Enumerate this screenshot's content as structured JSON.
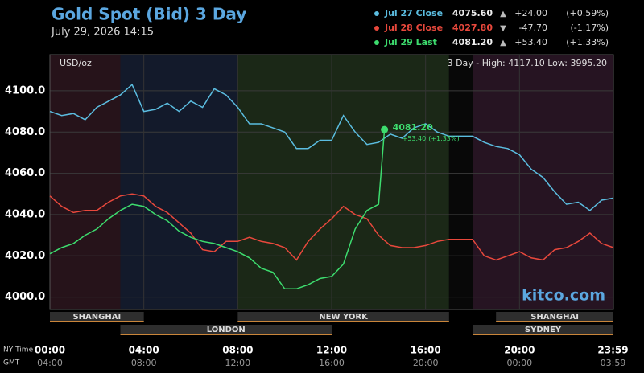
{
  "chart_data": {
    "type": "line",
    "title": "Gold Spot (Bid) 3 Day",
    "subtitle": "July 29, 2026 14:15",
    "unit_label": "USD/oz",
    "range_note": "3 Day - High: 4117.10  Low: 3995.20",
    "watermark": "kitco.com",
    "x_axis_labels": [
      "NY Time",
      "GMT"
    ],
    "xlim": [
      0,
      24
    ],
    "xticks": [
      {
        "value": 0,
        "label": "00:00"
      },
      {
        "value": 4,
        "label": "04:00"
      },
      {
        "value": 8,
        "label": "08:00"
      },
      {
        "value": 12,
        "label": "12:00"
      },
      {
        "value": 16,
        "label": "16:00"
      },
      {
        "value": 20,
        "label": "20:00"
      },
      {
        "value": 23.983,
        "label": "23:59"
      }
    ],
    "x2_tick_labels": [
      "04:00",
      "08:00",
      "12:00",
      "16:00",
      "20:00",
      "00:00",
      "03:59"
    ],
    "ylim": [
      3994,
      4117.5
    ],
    "yticks": [
      {
        "value": 4000,
        "label": "4000.0"
      },
      {
        "value": 4020,
        "label": "4020.0"
      },
      {
        "value": 4040,
        "label": "4040.0"
      },
      {
        "value": 4060,
        "label": "4060.0"
      },
      {
        "value": 4080,
        "label": "4080.0"
      },
      {
        "value": 4100,
        "label": "4100.0"
      }
    ],
    "grid": true,
    "legend": "top-right",
    "bands": [
      {
        "start": 0,
        "end": 3,
        "color": "#26131a"
      },
      {
        "start": 3,
        "end": 8,
        "color": "#131a2b"
      },
      {
        "start": 8,
        "end": 17,
        "color": "#1b2817"
      },
      {
        "start": 17,
        "end": 18,
        "color": "#080808"
      },
      {
        "start": 18,
        "end": 24,
        "color": "#261422"
      }
    ],
    "sessions": [
      {
        "name": "SHANGHAI",
        "start": 0,
        "end": 4
      },
      {
        "name": "LONDON",
        "start": 3,
        "end": 12
      },
      {
        "name": "NEW YORK",
        "start": 8,
        "end": 17
      },
      {
        "name": "SHANGHAI",
        "start": 19,
        "end": 24
      },
      {
        "name": "SYDNEY",
        "start": 18,
        "end": 24
      }
    ],
    "x": [
      0,
      0.5,
      1,
      1.5,
      2,
      2.5,
      3,
      3.5,
      4,
      4.5,
      5,
      5.5,
      6,
      6.5,
      7,
      7.5,
      8,
      8.5,
      9,
      9.5,
      10,
      10.5,
      11,
      11.5,
      12,
      12.5,
      13,
      13.5,
      14,
      14.5,
      15,
      15.5,
      16,
      16.5,
      17,
      17.5,
      18,
      18.5,
      19,
      19.5,
      20,
      20.5,
      21,
      21.5,
      22,
      22.5,
      23,
      23.5,
      24
    ],
    "series": [
      {
        "name": "Jul 27 Close",
        "color": "#5bbde0",
        "last": "4075.60",
        "arrow": "▲",
        "change": "+24.00",
        "change_pct": "(+0.59%)",
        "values": [
          4090,
          4088,
          4089,
          4086,
          4092,
          4095,
          4098,
          4103,
          4090,
          4091,
          4094,
          4090,
          4095,
          4092,
          4101,
          4098,
          4092,
          4084,
          4084,
          4082,
          4080,
          4072,
          4072,
          4076,
          4076,
          4088,
          4080,
          4074,
          4075,
          4079,
          4077,
          4082,
          4084,
          4080,
          4078,
          4078,
          4078,
          4075,
          4073,
          4072,
          4069,
          4062,
          4058,
          4051,
          4045,
          4046,
          4042,
          4047,
          4048
        ]
      },
      {
        "name": "Jul 28 Close",
        "color": "#e8483c",
        "last": "4027.80",
        "arrow": "▼",
        "change": "-47.70",
        "change_pct": "(-1.17%)",
        "values": [
          4049,
          4044,
          4041,
          4042,
          4042,
          4046,
          4049,
          4050,
          4049,
          4044,
          4041,
          4036,
          4031,
          4023,
          4022,
          4027,
          4027,
          4029,
          4027,
          4026,
          4024,
          4018,
          4027,
          4033,
          4038,
          4044,
          4040,
          4038,
          4030,
          4025,
          4024,
          4024,
          4025,
          4027,
          4028,
          4028,
          4028,
          4020,
          4018,
          4020,
          4022,
          4019,
          4018,
          4023,
          4024,
          4027,
          4031,
          4026,
          4024
        ]
      },
      {
        "name": "Jul 29 Last",
        "color": "#3ddc6e",
        "last": "4081.20",
        "arrow": "▲",
        "change": "+53.40",
        "change_pct": "(+1.33%)",
        "x": [
          0,
          0.5,
          1,
          1.5,
          2,
          2.5,
          3,
          3.5,
          4,
          4.5,
          5,
          5.5,
          6,
          6.5,
          7,
          7.5,
          8,
          8.5,
          9,
          9.5,
          10,
          10.5,
          11,
          11.5,
          12,
          12.5,
          13,
          13.5,
          14,
          14.25
        ],
        "values": [
          4021,
          4024,
          4026,
          4030,
          4033,
          4038,
          4042,
          4045,
          4044,
          4040,
          4037,
          4032,
          4029,
          4027,
          4026,
          4024,
          4022,
          4019,
          4014,
          4012,
          4004,
          4004,
          4006,
          4009,
          4010,
          4016,
          4033,
          4042,
          4045,
          4081.2
        ]
      }
    ]
  }
}
